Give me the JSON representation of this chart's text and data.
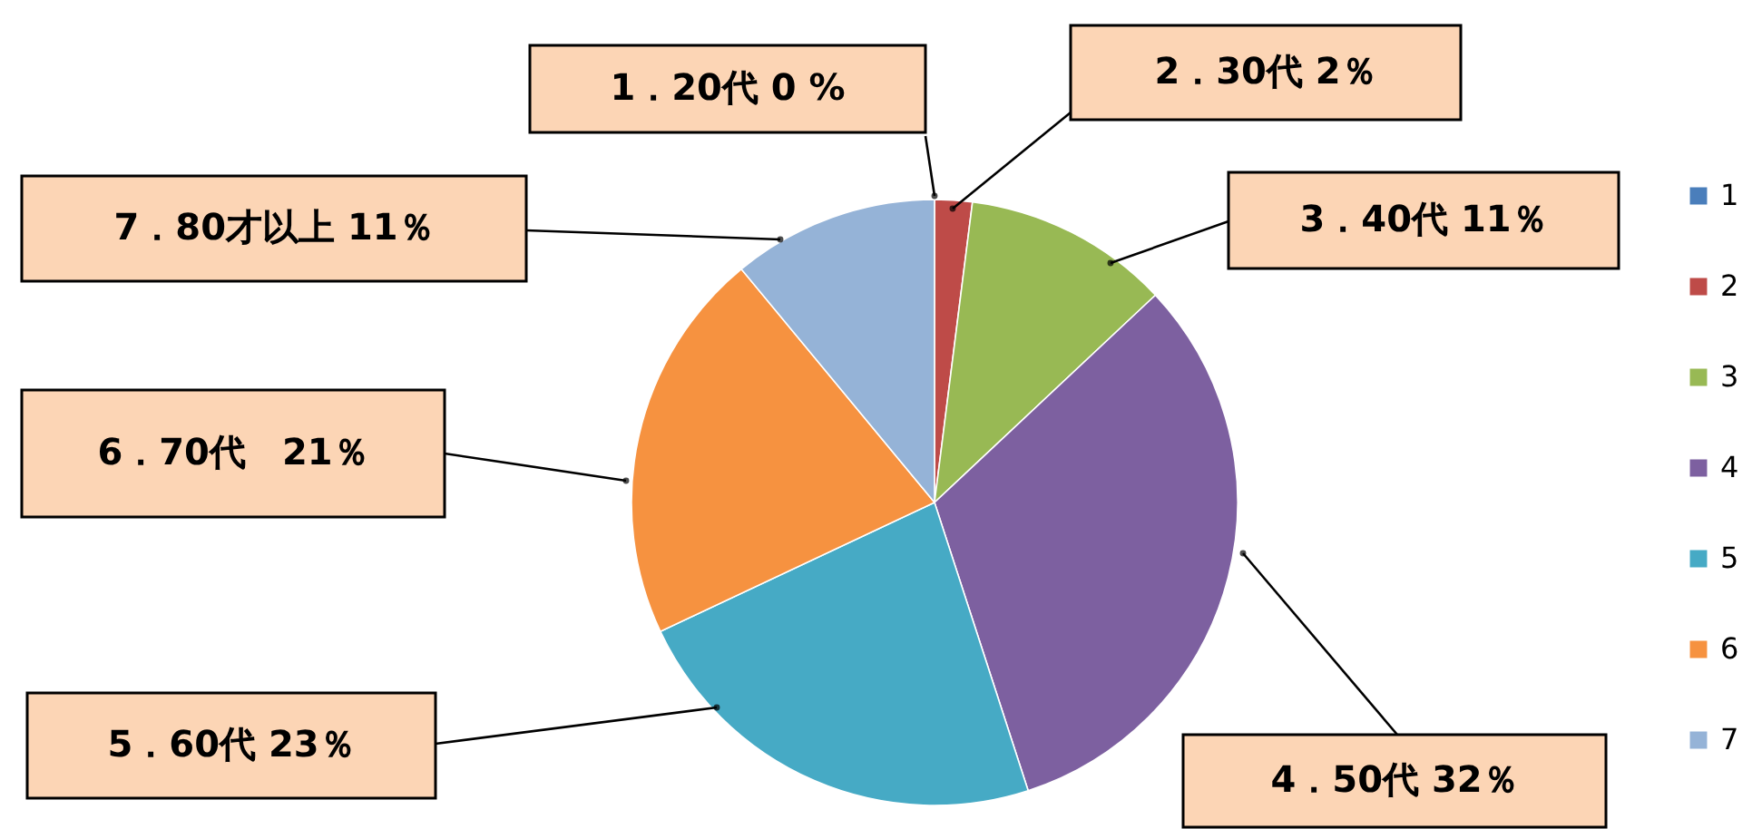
{
  "chart_data": {
    "type": "pie",
    "categories": [
      "1",
      "2",
      "3",
      "4",
      "5",
      "6",
      "7"
    ],
    "values": [
      0,
      2,
      11,
      32,
      23,
      21,
      11
    ],
    "colors": [
      "#4a7ebb",
      "#be4b48",
      "#98b954",
      "#7d60a0",
      "#46aac5",
      "#f69240",
      "#95b3d7"
    ],
    "legend": "right",
    "annotations": [
      "1．20代 0 %",
      "2．30代 2％",
      "3．40代 11％",
      "4．50代 32％",
      "5．60代 23％",
      "6．70代　21％",
      "7．80才以上 11％"
    ]
  }
}
